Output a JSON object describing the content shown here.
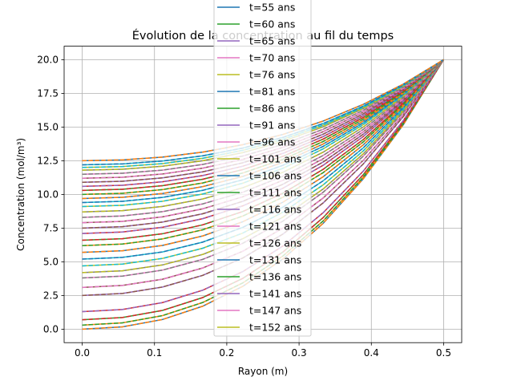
{
  "chart_data": {
    "type": "line",
    "title": "Évolution de la concentration au fil du temps",
    "xlabel": "Rayon (m)",
    "ylabel": "Concentration (mol/m³)",
    "xlim": [
      -0.025,
      0.525
    ],
    "ylim": [
      -1.0,
      21.0
    ],
    "xticks": [
      0.0,
      0.1,
      0.2,
      0.3,
      0.4,
      0.5
    ],
    "xtick_labels": [
      "0.0",
      "0.1",
      "0.2",
      "0.3",
      "0.4",
      "0.5"
    ],
    "yticks": [
      0.0,
      2.5,
      5.0,
      7.5,
      10.0,
      12.5,
      15.0,
      17.5,
      20.0
    ],
    "ytick_labels": [
      "0.0",
      "2.5",
      "5.0",
      "7.5",
      "10.0",
      "12.5",
      "15.0",
      "17.5",
      "20.0"
    ],
    "grid": true,
    "legend_position": "top-center",
    "x": [
      0.0,
      0.0556,
      0.1111,
      0.1667,
      0.2222,
      0.2778,
      0.3333,
      0.3889,
      0.4444,
      0.5
    ],
    "center_values": [
      0.0,
      0.3,
      0.7,
      1.3,
      2.5,
      3.1,
      3.8,
      4.2,
      4.7,
      5.2,
      5.7,
      6.2,
      6.6,
      7.1,
      7.5,
      7.9,
      8.3,
      8.7,
      9.1,
      9.4,
      9.7,
      10.0,
      10.3,
      10.6,
      10.9,
      11.2,
      11.5,
      11.8,
      12.0,
      12.2,
      12.5
    ],
    "surface_value": 20.0,
    "legend": [
      {
        "label": "t=55 ans",
        "color": "#1f77b4"
      },
      {
        "label": "t=60 ans",
        "color": "#2ca02c"
      },
      {
        "label": "t=65 ans",
        "color": "#9467bd"
      },
      {
        "label": "t=70 ans",
        "color": "#e377c2"
      },
      {
        "label": "t=76 ans",
        "color": "#bcbd22"
      },
      {
        "label": "t=81 ans",
        "color": "#1f77b4"
      },
      {
        "label": "t=86 ans",
        "color": "#2ca02c"
      },
      {
        "label": "t=91 ans",
        "color": "#9467bd"
      },
      {
        "label": "t=96 ans",
        "color": "#e377c2"
      },
      {
        "label": "t=101 ans",
        "color": "#bcbd22"
      },
      {
        "label": "t=106 ans",
        "color": "#1f77b4"
      },
      {
        "label": "t=111 ans",
        "color": "#2ca02c"
      },
      {
        "label": "t=116 ans",
        "color": "#9467bd"
      },
      {
        "label": "t=121 ans",
        "color": "#e377c2"
      },
      {
        "label": "t=126 ans",
        "color": "#bcbd22"
      },
      {
        "label": "t=131 ans",
        "color": "#1f77b4"
      },
      {
        "label": "t=136 ans",
        "color": "#2ca02c"
      },
      {
        "label": "t=141 ans",
        "color": "#9467bd"
      },
      {
        "label": "t=147 ans",
        "color": "#e377c2"
      },
      {
        "label": "t=152 ans",
        "color": "#bcbd22"
      }
    ],
    "line_colors": [
      "#1f77b4",
      "#ff7f0e",
      "#2ca02c",
      "#d62728",
      "#9467bd",
      "#8c564b",
      "#e377c2",
      "#7f7f7f",
      "#bcbd22",
      "#17becf"
    ]
  }
}
